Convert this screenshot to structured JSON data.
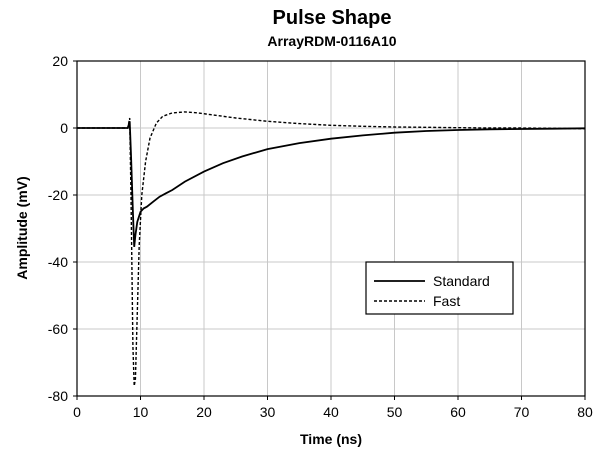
{
  "chart_data": {
    "type": "line",
    "title": "Pulse Shape",
    "subtitle": "ArrayRDM-0116A10",
    "xlabel": "Time (ns)",
    "ylabel": "Amplitude (mV)",
    "xlim": [
      0,
      80
    ],
    "ylim": [
      -80,
      20
    ],
    "xticks": [
      0,
      10,
      20,
      30,
      40,
      50,
      60,
      70,
      80
    ],
    "yticks": [
      20,
      0,
      -20,
      -40,
      -60,
      -80
    ],
    "grid": true,
    "legend_position": "lower-right",
    "series": [
      {
        "name": "Standard",
        "style": "solid",
        "color": "#000000",
        "x": [
          0,
          5,
          8.0,
          8.3,
          8.5,
          8.8,
          9.0,
          9.2,
          9.5,
          10.0,
          10.5,
          11.0,
          12.0,
          13.0,
          14.0,
          15.0,
          17.0,
          20.0,
          23.0,
          26.0,
          30.0,
          35.0,
          40.0,
          45.0,
          50.0,
          55.0,
          60.0,
          65.0,
          70.0,
          75.0,
          80.0
        ],
        "y": [
          0,
          0,
          0,
          2.0,
          -8.0,
          -25.0,
          -35.5,
          -32.0,
          -28.0,
          -25.0,
          -24.0,
          -23.5,
          -22.0,
          -20.5,
          -19.5,
          -18.5,
          -16.0,
          -13.0,
          -10.5,
          -8.5,
          -6.3,
          -4.5,
          -3.2,
          -2.2,
          -1.4,
          -0.9,
          -0.6,
          -0.4,
          -0.3,
          -0.2,
          -0.1
        ]
      },
      {
        "name": "Fast",
        "style": "dashed",
        "color": "#000000",
        "x": [
          0,
          5,
          8.0,
          8.3,
          8.5,
          8.8,
          9.0,
          9.2,
          9.5,
          9.8,
          10.2,
          10.8,
          11.5,
          12.5,
          13.5,
          15.0,
          17.0,
          19.0,
          21.0,
          25.0,
          30.0,
          35.0,
          40.0,
          45.0,
          50.0,
          55.0,
          60.0,
          65.0,
          70.0,
          75.0,
          80.0
        ],
        "y": [
          0,
          0,
          0,
          3.0,
          -20.0,
          -65.0,
          -77.0,
          -75.0,
          -55.0,
          -35.0,
          -20.0,
          -10.0,
          -3.0,
          1.5,
          3.5,
          4.5,
          4.8,
          4.5,
          4.0,
          3.0,
          2.0,
          1.3,
          0.8,
          0.5,
          0.3,
          0.2,
          0.1,
          0.0,
          0.0,
          -0.1,
          -0.2
        ]
      }
    ]
  }
}
